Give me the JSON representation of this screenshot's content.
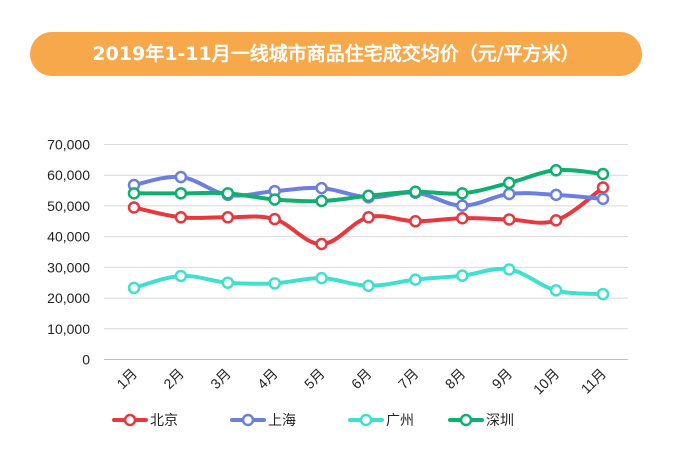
{
  "title": "2019年1-11月一线城市商品住宅成交均价（元/平方米）",
  "chart_data": {
    "type": "line",
    "title": "2019年1-11月一线城市商品住宅成交均价（元/平方米）",
    "categories": [
      "1月",
      "2月",
      "3月",
      "4月",
      "5月",
      "6月",
      "7月",
      "8月",
      "9月",
      "10月",
      "11月"
    ],
    "y_tick_labels": [
      "0",
      "10,000",
      "20,000",
      "30,000",
      "40,000",
      "50,000",
      "60,000",
      "70,000"
    ],
    "ylim": [
      0,
      70000
    ],
    "grid": true,
    "legend_position": "bottom-left",
    "series": [
      {
        "name": "北京",
        "color": "#E8383D",
        "values": [
          49500,
          46300,
          46300,
          45700,
          37600,
          46300,
          45000,
          46000,
          45600,
          45300,
          56000
        ]
      },
      {
        "name": "上海",
        "color": "#6B7FE0",
        "values": [
          56800,
          59400,
          53600,
          54800,
          55800,
          52800,
          54300,
          50100,
          53900,
          53600,
          52300
        ]
      },
      {
        "name": "广州",
        "color": "#3FE0D0",
        "values": [
          23300,
          27200,
          25000,
          24800,
          26500,
          24000,
          26000,
          27300,
          29300,
          22500,
          21300
        ]
      },
      {
        "name": "深圳",
        "color": "#0FAF6F",
        "values": [
          54100,
          54100,
          54100,
          52100,
          51600,
          53300,
          54600,
          54100,
          57500,
          61600,
          60400
        ]
      }
    ]
  }
}
